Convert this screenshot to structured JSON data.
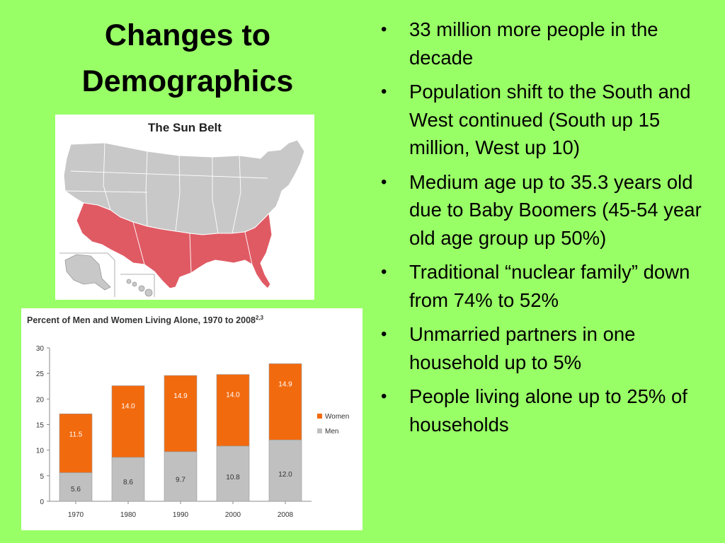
{
  "slide": {
    "title": "Changes to Demographics"
  },
  "map": {
    "title": "The Sun Belt",
    "colors": {
      "states": "#c8c8c8",
      "sunbelt": "#e05a64",
      "outline": "#ffffff"
    }
  },
  "bullets": [
    "33 million more people in the decade",
    "Population shift to the South and West continued (South up 15 million, West up 10)",
    "Medium age up to 35.3 years old due to Baby Boomers (45-54 year old age group up 50%)",
    "Traditional “nuclear family” down from 74% to 52%",
    "Unmarried partners in one household up to 5%",
    "People living alone up to 25% of households"
  ],
  "chart_data": {
    "type": "bar",
    "stacked": true,
    "title": "Percent of Men and Women Living Alone, 1970 to 2008",
    "title_superscript": "2,3",
    "categories": [
      "1970",
      "1980",
      "1990",
      "2000",
      "2008"
    ],
    "series": [
      {
        "name": "Men",
        "values": [
          5.6,
          8.6,
          9.7,
          10.8,
          12.0
        ],
        "labels": [
          "5.6",
          "8.6",
          "9.7",
          "10.8",
          "12.0"
        ],
        "color": "#c0c0c0"
      },
      {
        "name": "Women",
        "values": [
          11.5,
          14.0,
          14.9,
          14.0,
          14.9
        ],
        "labels": [
          "11.5",
          "14.0",
          "14.9",
          "14.0",
          "14.9"
        ],
        "color": "#f26a0e"
      }
    ],
    "yticks": [
      "0",
      "5",
      "10",
      "15",
      "20",
      "25",
      "30"
    ],
    "ylim": [
      0,
      30
    ],
    "legend": [
      "Women",
      "Men"
    ],
    "legend_position": "right",
    "grid": false
  }
}
